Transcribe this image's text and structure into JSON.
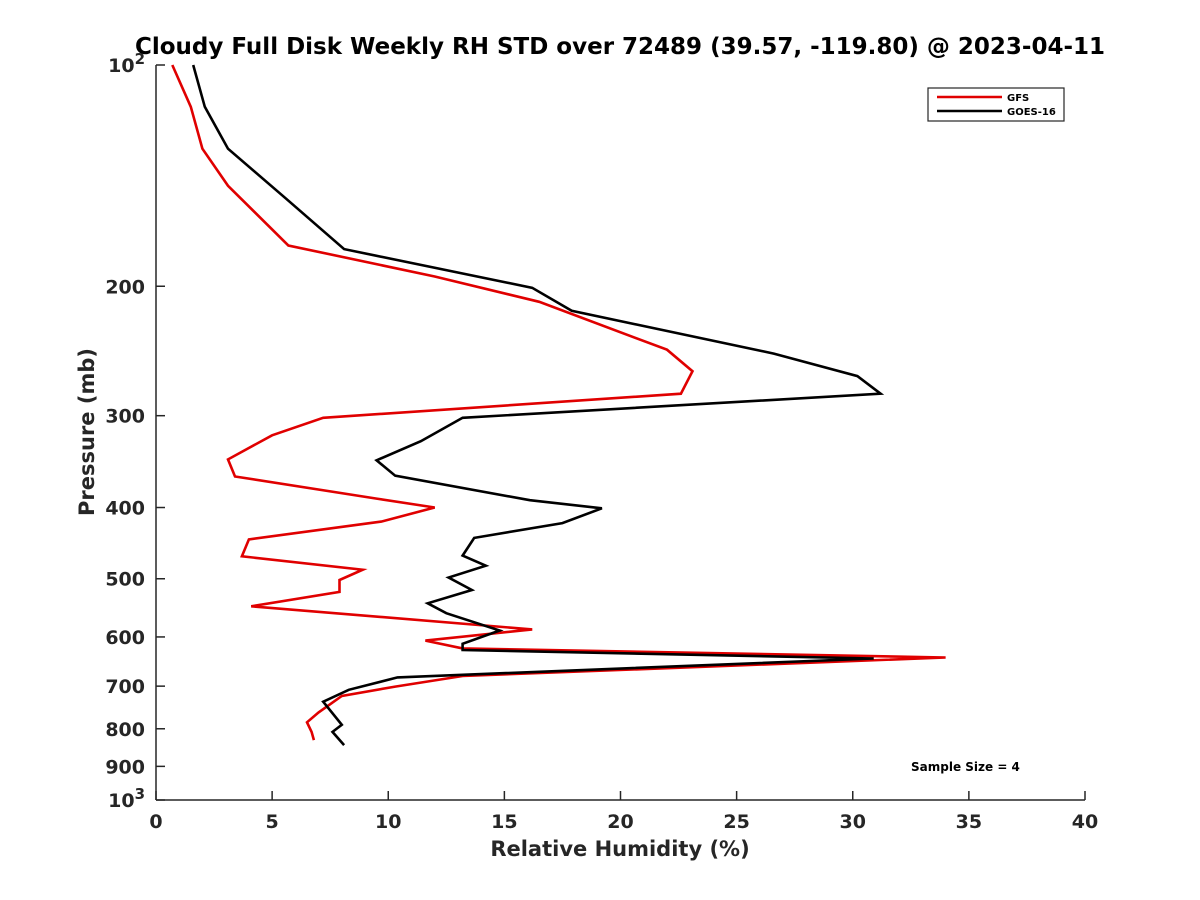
{
  "chart_data": {
    "type": "line",
    "title": "Cloudy Full Disk Weekly RH STD over 72489 (39.57, -119.80) @ 2023-04-11",
    "xlabel": "Relative Humidity (%)",
    "ylabel": "Pressure (mb)",
    "xlim": [
      0,
      40
    ],
    "ylim": [
      100,
      1000
    ],
    "y_scale": "log",
    "y_reversed": true,
    "grid": false,
    "legend_position": "top-right",
    "x_ticks": [
      0,
      5,
      10,
      15,
      20,
      25,
      30,
      35,
      40
    ],
    "x_tick_labels": [
      "0",
      "5",
      "10",
      "15",
      "20",
      "25",
      "30",
      "35",
      "40"
    ],
    "y_ticks": [
      100,
      200,
      300,
      400,
      500,
      600,
      700,
      800,
      900,
      1000
    ],
    "y_tick_labels": [
      {
        "base": "10",
        "exp": "2"
      },
      {
        "base": "200",
        "exp": ""
      },
      {
        "base": "300",
        "exp": ""
      },
      {
        "base": "400",
        "exp": ""
      },
      {
        "base": "500",
        "exp": ""
      },
      {
        "base": "600",
        "exp": ""
      },
      {
        "base": "700",
        "exp": ""
      },
      {
        "base": "800",
        "exp": ""
      },
      {
        "base": "900",
        "exp": ""
      },
      {
        "base": "10",
        "exp": "3"
      }
    ],
    "series": [
      {
        "name": "GFS",
        "color": "#e00000",
        "points": [
          [
            0.7,
            100
          ],
          [
            1.5,
            114
          ],
          [
            2.0,
            130
          ],
          [
            3.1,
            146
          ],
          [
            5.7,
            176
          ],
          [
            12.0,
            194
          ],
          [
            16.5,
            210
          ],
          [
            22.0,
            244
          ],
          [
            23.1,
            261
          ],
          [
            22.6,
            280
          ],
          [
            7.2,
            302
          ],
          [
            5.0,
            319
          ],
          [
            3.1,
            344
          ],
          [
            3.4,
            363
          ],
          [
            9.5,
            389
          ],
          [
            12.0,
            400
          ],
          [
            9.7,
            418
          ],
          [
            4.0,
            442
          ],
          [
            3.7,
            466
          ],
          [
            8.9,
            486
          ],
          [
            7.9,
            502
          ],
          [
            7.9,
            521
          ],
          [
            4.1,
            545
          ],
          [
            16.2,
            586
          ],
          [
            11.6,
            607
          ],
          [
            13.2,
            622
          ],
          [
            34.0,
            640
          ],
          [
            13.2,
            678
          ],
          [
            10.3,
            701
          ],
          [
            8.0,
            722
          ],
          [
            7.0,
            760
          ],
          [
            6.5,
            784
          ],
          [
            6.7,
            808
          ],
          [
            6.8,
            829
          ]
        ]
      },
      {
        "name": "GOES-16",
        "color": "#000000",
        "points": [
          [
            1.6,
            100
          ],
          [
            2.1,
            114
          ],
          [
            3.1,
            130
          ],
          [
            5.6,
            152
          ],
          [
            8.1,
            178
          ],
          [
            16.2,
            201
          ],
          [
            17.9,
            216
          ],
          [
            26.6,
            247
          ],
          [
            30.2,
            265
          ],
          [
            31.2,
            280
          ],
          [
            13.2,
            302
          ],
          [
            11.4,
            325
          ],
          [
            9.5,
            345
          ],
          [
            10.3,
            362
          ],
          [
            16.1,
            391
          ],
          [
            19.2,
            401
          ],
          [
            17.5,
            420
          ],
          [
            13.7,
            440
          ],
          [
            13.2,
            465
          ],
          [
            14.2,
            480
          ],
          [
            12.6,
            498
          ],
          [
            13.6,
            518
          ],
          [
            11.7,
            540
          ],
          [
            12.5,
            557
          ],
          [
            14.8,
            588
          ],
          [
            13.2,
            613
          ],
          [
            13.2,
            625
          ],
          [
            30.9,
            642
          ],
          [
            10.4,
            681
          ],
          [
            8.3,
            708
          ],
          [
            7.2,
            735
          ],
          [
            8.0,
            790
          ],
          [
            7.6,
            808
          ],
          [
            8.1,
            842
          ]
        ]
      }
    ],
    "annotation": "Sample Size = 4"
  }
}
